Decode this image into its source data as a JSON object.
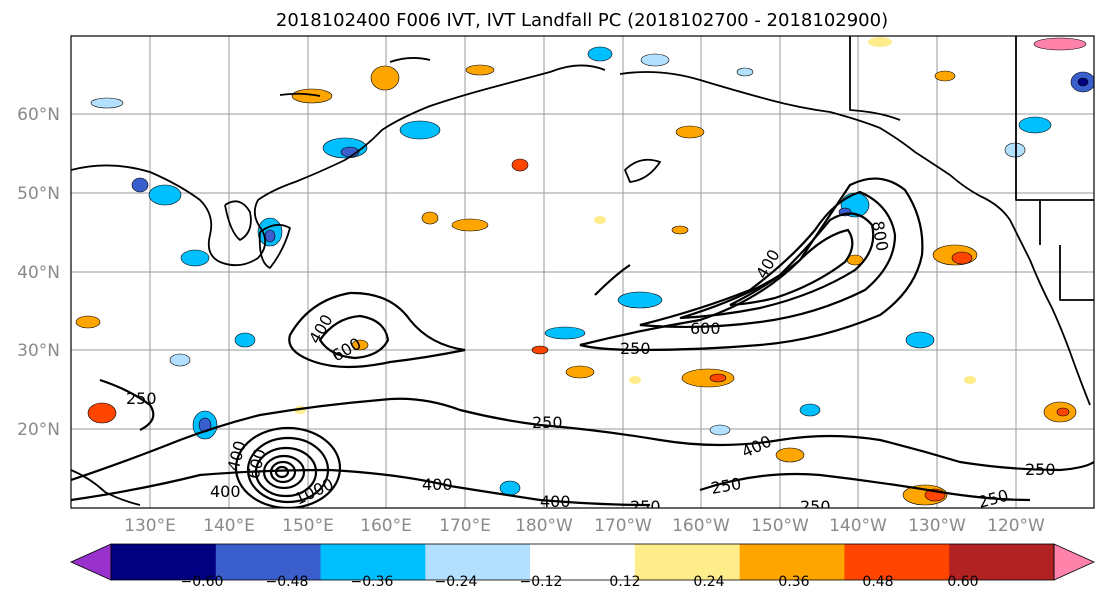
{
  "title": "2018102400 F006 IVT, IVT Landfall PC (2018102700 - 2018102900)",
  "map": {
    "lat_labels": [
      "60°N",
      "50°N",
      "40°N",
      "30°N",
      "20°N"
    ],
    "lon_labels": [
      "130°E",
      "140°E",
      "150°E",
      "160°E",
      "170°E",
      "180°W",
      "170°W",
      "160°W",
      "150°W",
      "140°W",
      "130°W",
      "120°W"
    ],
    "contour_labels": [
      "800",
      "400",
      "600",
      "250",
      "400",
      "600",
      "250",
      "250",
      "400",
      "250",
      "400",
      "400",
      "600",
      "1000",
      "400",
      "250",
      "250",
      "400",
      "250",
      "250"
    ]
  },
  "colorbar": {
    "tick_labels": [
      "−0.60",
      "−0.48",
      "−0.36",
      "−0.24",
      "−0.12",
      "0.12",
      "0.24",
      "0.36",
      "0.48",
      "0.60"
    ],
    "colors": [
      "#9932cc",
      "#000080",
      "#3a5fcd",
      "#00bfff",
      "#b3e0ff",
      "#ffffff",
      "#ffec8b",
      "#ffa500",
      "#ff4500",
      "#b22222",
      "#ff82ab"
    ]
  }
}
